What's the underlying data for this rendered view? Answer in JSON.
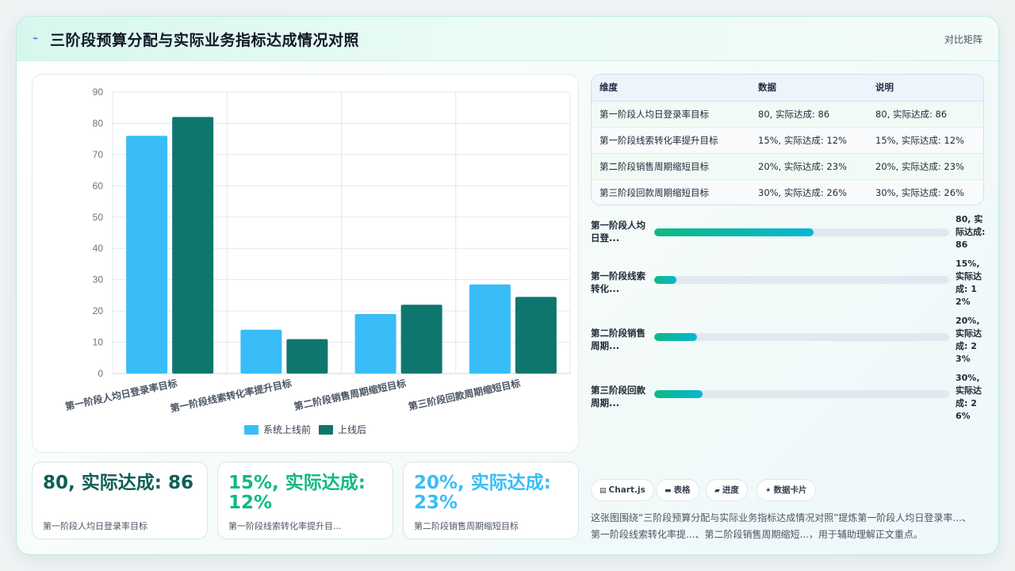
{
  "header": {
    "icon": "sparkle-icon",
    "title": "三阶段预算分配与实际业务指标达成情况对照",
    "tag": "对比矩阵"
  },
  "chart_data": {
    "type": "bar",
    "categories": [
      "第一阶段人均日登录率目标",
      "第一阶段线索转化率提升目标",
      "第二阶段销售周期缩短目标",
      "第三阶段回款周期缩短目标"
    ],
    "series": [
      {
        "name": "系统上线前",
        "values": [
          76,
          14,
          19,
          28.5
        ],
        "color": "#38bdf8"
      },
      {
        "name": "上线后",
        "values": [
          82,
          11,
          22,
          24.5
        ],
        "color": "#0f766e"
      }
    ],
    "ylim": [
      0,
      90
    ],
    "yticks": [
      0,
      10,
      20,
      30,
      40,
      50,
      60,
      70,
      80,
      90
    ],
    "grid": true,
    "legend": "bottom"
  },
  "table": {
    "headers": [
      "维度",
      "数据",
      "说明"
    ],
    "rows": [
      [
        "第一阶段人均日登录率目标",
        "80, 实际达成: 86",
        "80, 实际达成: 86"
      ],
      [
        "第一阶段线索转化率提升目标",
        "15%, 实际达成: 12%",
        "15%, 实际达成: 12%"
      ],
      [
        "第二阶段销售周期缩短目标",
        "20%, 实际达成: 23%",
        "20%, 实际达成: 23%"
      ],
      [
        "第三阶段回款周期缩短目标",
        "30%, 实际达成: 26%",
        "30%, 实际达成: 26%"
      ]
    ]
  },
  "progress": [
    {
      "label": "第一阶段人均日登...",
      "value": "80, 实际达成: 86",
      "fraction": 0.54
    },
    {
      "label": "第一阶段线索转化...",
      "value": "15%, 实际达成: 12%",
      "fraction": 0.075
    },
    {
      "label": "第二阶段销售周期...",
      "value": "20%, 实际达成: 23%",
      "fraction": 0.145
    },
    {
      "label": "第三阶段回款周期...",
      "value": "30%, 实际达成: 26%",
      "fraction": 0.165
    }
  ],
  "kpis": [
    {
      "value": "80, 实际达成: 86",
      "label": "第一阶段人均日登录率目标",
      "color": "#0f5e56"
    },
    {
      "value": "15%, 实际达成: 12%",
      "label": "第一阶段线索转化率提升目...",
      "color": "#10b981"
    },
    {
      "value": "20%, 实际达成: 23%",
      "label": "第二阶段销售周期缩短目标",
      "color": "#38bdf8"
    }
  ],
  "chips": [
    {
      "icon": "chart-icon",
      "glyph": "▤",
      "label": "Chart.js"
    },
    {
      "icon": "table-icon",
      "glyph": "▬",
      "label": "表格"
    },
    {
      "icon": "progress-icon",
      "glyph": "▰",
      "label": "进度"
    },
    {
      "icon": "sparkle-icon",
      "glyph": "✦",
      "label": "数据卡片"
    }
  ],
  "description": "这张图围绕“三阶段预算分配与实际业务指标达成情况对照”提炼第一阶段人均日登录率...、第一阶段线索转化率提...、第二阶段销售周期缩短...，用于辅助理解正文重点。"
}
